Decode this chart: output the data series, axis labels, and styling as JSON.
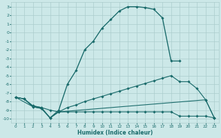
{
  "xlabel": "Humidex (Indice chaleur)",
  "bg_color": "#cce8e8",
  "grid_color": "#aacccc",
  "line_color": "#1a6b6b",
  "xlim": [
    -0.5,
    23.5
  ],
  "ylim": [
    -10.5,
    3.5
  ],
  "xticks": [
    0,
    1,
    2,
    3,
    4,
    5,
    6,
    7,
    8,
    9,
    10,
    11,
    12,
    13,
    14,
    15,
    16,
    17,
    18,
    19,
    20,
    21,
    22,
    23
  ],
  "yticks": [
    3,
    2,
    1,
    0,
    -1,
    -2,
    -3,
    -4,
    -5,
    -6,
    -7,
    -8,
    -9,
    -10
  ],
  "curve1_x": [
    0,
    1,
    2,
    3,
    4,
    5,
    6,
    7,
    8,
    9,
    10,
    11,
    12,
    13,
    14,
    15,
    16,
    17,
    18,
    19
  ],
  "curve1_y": [
    -7.5,
    -7.7,
    -8.6,
    -8.8,
    -9.9,
    -9.0,
    -6.0,
    -4.4,
    -2.0,
    -1.0,
    0.5,
    1.5,
    2.5,
    3.0,
    3.0,
    2.9,
    2.7,
    1.7,
    -3.3,
    -3.3
  ],
  "curve2_x": [
    0,
    1,
    2,
    3,
    4,
    5,
    6,
    7,
    8,
    9,
    10,
    11,
    12,
    13,
    14,
    15,
    16,
    17,
    18,
    19,
    20,
    21,
    22,
    23
  ],
  "curve2_y": [
    -7.5,
    -7.7,
    -8.5,
    -8.7,
    -9.0,
    -9.2,
    -8.7,
    -8.4,
    -8.0,
    -7.7,
    -7.4,
    -7.1,
    -6.8,
    -6.5,
    -6.2,
    -5.9,
    -5.6,
    -5.3,
    -5.0,
    -5.7,
    -5.7,
    -6.5,
    -7.8,
    -9.9
  ],
  "curve3_x": [
    0,
    1,
    2,
    3,
    4,
    5,
    6,
    7,
    8,
    9,
    10,
    11,
    12,
    13,
    14,
    15,
    16,
    17,
    18,
    19,
    20,
    21,
    22,
    23
  ],
  "curve3_y": [
    -7.5,
    -7.7,
    -8.5,
    -8.7,
    -9.9,
    -9.2,
    -9.2,
    -9.2,
    -9.2,
    -9.2,
    -9.2,
    -9.2,
    -9.2,
    -9.2,
    -9.2,
    -9.2,
    -9.2,
    -9.2,
    -9.2,
    -9.7,
    -9.7,
    -9.7,
    -9.7,
    -9.9
  ],
  "curve4_x": [
    0,
    2,
    3,
    4,
    5,
    22,
    23
  ],
  "curve4_y": [
    -7.5,
    -8.6,
    -8.8,
    -9.9,
    -9.2,
    -7.8,
    -9.9
  ]
}
